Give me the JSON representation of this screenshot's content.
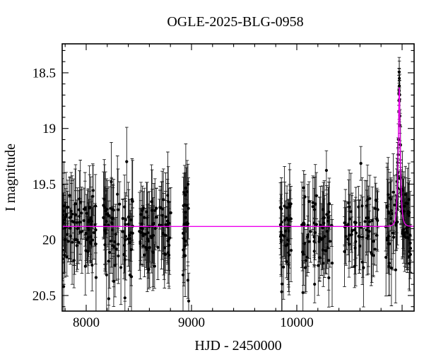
{
  "figure": {
    "title": "OGLE-2025-BLG-0958",
    "xlabel": "HJD - 2450000",
    "ylabel": "I magnitude"
  },
  "chart_data": {
    "type": "scatter",
    "title": "OGLE-2025-BLG-0958",
    "xlabel": "HJD - 2450000",
    "ylabel": "I magnitude",
    "grid": false,
    "legend": "none",
    "x_axis": {
      "min": 7772,
      "max": 11114,
      "minor_tick_step": 200,
      "major_ticks": [
        {
          "value": 8000,
          "label": "8000"
        },
        {
          "value": 9000,
          "label": "9000"
        },
        {
          "value": 10000,
          "label": "10000"
        },
        {
          "value": 11000,
          "label": ""
        }
      ]
    },
    "y_axis": {
      "min": 18.24,
      "max": 20.64,
      "inverted": true,
      "minor_tick_step": 0.1,
      "major_ticks": [
        {
          "value": 18.5,
          "label": "18.5"
        },
        {
          "value": 19.0,
          "label": "19"
        },
        {
          "value": 19.5,
          "label": "19.5"
        },
        {
          "value": 20.0,
          "label": "20"
        },
        {
          "value": 20.5,
          "label": "20.5"
        }
      ]
    },
    "series": [
      {
        "name": "OGLE I-band photometry",
        "type": "points-with-errorbars",
        "color": "#000000"
      },
      {
        "name": "microlensing model",
        "type": "line",
        "color": "#ee00ee"
      }
    ],
    "model": {
      "type": "paczynski",
      "t0": 10973,
      "tE": 20,
      "u0": 0.33,
      "baseline_mag": 19.88,
      "peak_mag": 18.63
    },
    "seasons": [
      {
        "t_start": 7772,
        "t_end": 8101,
        "n": 85,
        "mag_sigma": 0.17
      },
      {
        "t_start": 8161,
        "t_end": 8443,
        "n": 72,
        "mag_sigma": 0.17
      },
      {
        "t_start": 8503,
        "t_end": 8805,
        "n": 72,
        "mag_sigma": 0.17
      },
      {
        "t_start": 8919,
        "t_end": 8973,
        "n": 26,
        "mag_sigma": 0.21
      },
      {
        "t_start": 9839,
        "t_end": 9946,
        "n": 38,
        "mag_sigma": 0.17
      },
      {
        "t_start": 10034,
        "t_end": 10336,
        "n": 62,
        "mag_sigma": 0.17
      },
      {
        "t_start": 10450,
        "t_end": 10770,
        "n": 62,
        "mag_sigma": 0.17
      },
      {
        "t_start": 10845,
        "t_end": 11088,
        "n": 85,
        "mag_sigma": 0.15
      },
      {
        "t_start": 10950,
        "t_end": 10996,
        "n": 22,
        "mag_sigma": 0.1
      }
    ],
    "err_base": 0.14,
    "err_spread": 0.26,
    "colors": {
      "points": "#000000",
      "error_bars": "#1c1c1c",
      "model": "#ee00ee",
      "frame": "#000000",
      "background": "#ffffff"
    },
    "random_seed": 20250958
  }
}
